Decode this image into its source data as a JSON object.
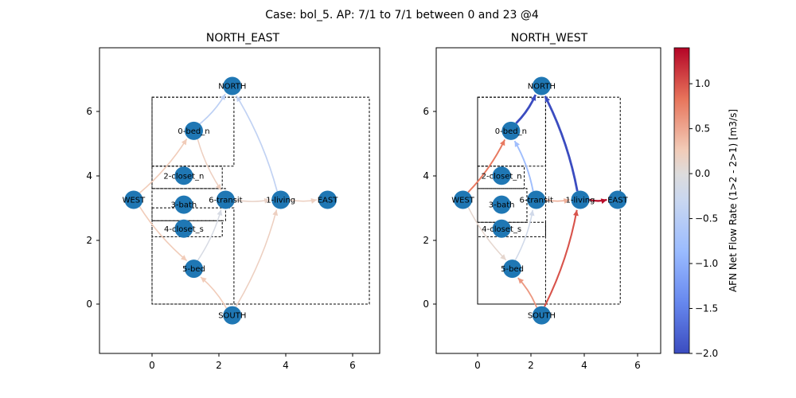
{
  "figure": {
    "suptitle": "Case: bol_5. AP: 7/1 to 7/1 between 0 and 23 @4",
    "colorbar": {
      "label": "AFN Net Flow Rate (1>2 - 2>1) [m3/s]",
      "range": [
        -2.0,
        1.4
      ],
      "ticks": [
        "1.0",
        "0.5",
        "0.0",
        "−0.5",
        "−1.0",
        "−1.5",
        "−2.0"
      ],
      "tick_values": [
        1.0,
        0.5,
        0.0,
        -0.5,
        -1.0,
        -1.5,
        -2.0
      ],
      "colormap": "coolwarm",
      "colors": [
        "#3b4cc0",
        "#7396f5",
        "#b0cbfc",
        "#dddcdc",
        "#f6bfa6",
        "#e8765c",
        "#b40426"
      ]
    }
  },
  "chart_data": [
    {
      "type": "network",
      "title": "NORTH_EAST",
      "xticks": [
        "0",
        "2",
        "4",
        "6"
      ],
      "yticks": [
        "0",
        "2",
        "4",
        "6"
      ],
      "xlim": [
        -1.6,
        6.8
      ],
      "ylim": [
        -1.5,
        8.0
      ],
      "node_color": "#1f77b4",
      "zones": [
        {
          "x": 0,
          "y": 0,
          "w": 2.45,
          "h": 3.0
        },
        {
          "x": 0,
          "y": 4.3,
          "w": 2.45,
          "h": 2.15
        },
        {
          "x": 0,
          "y": 0,
          "w": 6.5,
          "h": 6.45
        },
        {
          "x": 0,
          "y": 3.6,
          "w": 2.1,
          "h": 0.7
        },
        {
          "x": 0,
          "y": 2.6,
          "w": 2.2,
          "h": 1.0
        },
        {
          "x": 0,
          "y": 2.1,
          "w": 2.1,
          "h": 0.5
        }
      ],
      "nodes": [
        {
          "id": "NORTH",
          "label": "NORTH",
          "x": 2.4,
          "y": 6.8
        },
        {
          "id": "0-bed_n",
          "label": "0-bed_n",
          "x": 1.25,
          "y": 5.4
        },
        {
          "id": "2-closet_n",
          "label": "2-closet_n",
          "x": 0.95,
          "y": 4.0
        },
        {
          "id": "WEST",
          "label": "WEST",
          "x": -0.55,
          "y": 3.25
        },
        {
          "id": "3-bath",
          "label": "3-bath",
          "x": 0.95,
          "y": 3.1
        },
        {
          "id": "6-transit",
          "label": "6-transit",
          "x": 2.2,
          "y": 3.25
        },
        {
          "id": "1-living",
          "label": "1-living",
          "x": 3.85,
          "y": 3.25
        },
        {
          "id": "EAST",
          "label": "EAST",
          "x": 5.25,
          "y": 3.25
        },
        {
          "id": "4-closet_s",
          "label": "4-closet_s",
          "x": 0.95,
          "y": 2.35
        },
        {
          "id": "5-bed",
          "label": "5-bed",
          "x": 1.25,
          "y": 1.1
        },
        {
          "id": "SOUTH",
          "label": "SOUTH",
          "x": 2.4,
          "y": -0.35
        }
      ],
      "edges": [
        {
          "from": "NORTH",
          "to": "0-bed_n",
          "flow": -0.45
        },
        {
          "from": "NORTH",
          "to": "1-living",
          "flow": -0.4
        },
        {
          "from": "WEST",
          "to": "0-bed_n",
          "flow": 0.25
        },
        {
          "from": "WEST",
          "to": "5-bed",
          "flow": 0.25
        },
        {
          "from": "0-bed_n",
          "to": "6-transit",
          "flow": 0.2
        },
        {
          "from": "6-transit",
          "to": "5-bed",
          "flow": -0.1
        },
        {
          "from": "6-transit",
          "to": "1-living",
          "flow": 0.15
        },
        {
          "from": "1-living",
          "to": "EAST",
          "flow": 0.2
        },
        {
          "from": "SOUTH",
          "to": "5-bed",
          "flow": 0.25
        },
        {
          "from": "SOUTH",
          "to": "1-living",
          "flow": 0.2
        }
      ]
    },
    {
      "type": "network",
      "title": "NORTH_WEST",
      "xticks": [
        "0",
        "2",
        "4",
        "6"
      ],
      "yticks": [
        "0",
        "2",
        "4",
        "6"
      ],
      "xlim": [
        -1.6,
        6.8
      ],
      "ylim": [
        -1.5,
        8.0
      ],
      "node_color": "#1f77b4",
      "zones": [
        {
          "x": 0,
          "y": 0,
          "w": 2.55,
          "h": 6.45
        },
        {
          "x": 0,
          "y": 0,
          "w": 5.35,
          "h": 6.45
        },
        {
          "x": 0,
          "y": 4.3,
          "w": 2.55,
          "h": 2.15
        },
        {
          "x": 0,
          "y": 3.6,
          "w": 1.75,
          "h": 0.7
        },
        {
          "x": 0,
          "y": 2.55,
          "w": 1.85,
          "h": 1.05
        },
        {
          "x": 0,
          "y": 2.1,
          "w": 2.55,
          "h": 0.45
        }
      ],
      "nodes": [
        {
          "id": "NORTH",
          "label": "NORTH",
          "x": 2.4,
          "y": 6.8
        },
        {
          "id": "0-bed_n",
          "label": "0-bed_n",
          "x": 1.25,
          "y": 5.4
        },
        {
          "id": "2-closet_n",
          "label": "2-closet_n",
          "x": 0.9,
          "y": 4.0
        },
        {
          "id": "WEST",
          "label": "WEST",
          "x": -0.55,
          "y": 3.25
        },
        {
          "id": "3-bath",
          "label": "3-bath",
          "x": 0.9,
          "y": 3.1
        },
        {
          "id": "6-transit",
          "label": "6-transit",
          "x": 2.2,
          "y": 3.25
        },
        {
          "id": "1-living",
          "label": "1-living",
          "x": 3.85,
          "y": 3.25
        },
        {
          "id": "EAST",
          "label": "EAST",
          "x": 5.25,
          "y": 3.25
        },
        {
          "id": "4-closet_s",
          "label": "4-closet_s",
          "x": 0.9,
          "y": 2.35
        },
        {
          "id": "5-bed",
          "label": "5-bed",
          "x": 1.3,
          "y": 1.1
        },
        {
          "id": "SOUTH",
          "label": "SOUTH",
          "x": 2.4,
          "y": -0.35
        }
      ],
      "edges": [
        {
          "from": "NORTH",
          "to": "0-bed_n",
          "flow": -2.0
        },
        {
          "from": "NORTH",
          "to": "1-living",
          "flow": -2.0
        },
        {
          "from": "WEST",
          "to": "0-bed_n",
          "flow": 0.8
        },
        {
          "from": "WEST",
          "to": "5-bed",
          "flow": 0.1
        },
        {
          "from": "0-bed_n",
          "to": "6-transit",
          "flow": -0.8
        },
        {
          "from": "6-transit",
          "to": "5-bed",
          "flow": -0.2
        },
        {
          "from": "6-transit",
          "to": "1-living",
          "flow": 0.45
        },
        {
          "from": "1-living",
          "to": "EAST",
          "flow": 1.35
        },
        {
          "from": "SOUTH",
          "to": "5-bed",
          "flow": 0.6
        },
        {
          "from": "SOUTH",
          "to": "1-living",
          "flow": 1.0
        }
      ]
    }
  ]
}
